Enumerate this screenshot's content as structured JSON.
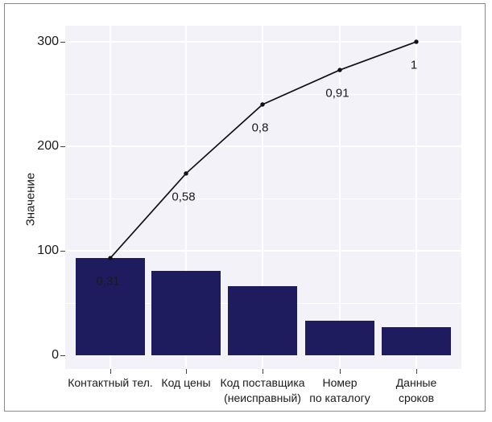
{
  "figure": {
    "frame_border_color": "#8a8a8a",
    "background": "#ffffff"
  },
  "chart_data": {
    "type": "bar",
    "subtype": "pareto",
    "title": "",
    "xlabel": "",
    "ylabel": "Значение",
    "ylim": [
      0,
      300
    ],
    "yticks": [
      0,
      100,
      200,
      300
    ],
    "grid": {
      "horizontal_values": [
        50,
        100,
        150,
        200,
        250,
        300
      ],
      "major_values": [
        100,
        200,
        300
      ],
      "vertical": "at category centers",
      "color": "#ffffff",
      "visible": true
    },
    "legend": "none",
    "categories": [
      "Контактный тел.",
      "Код цены",
      "Код поставщика (неисправный)",
      "Номер по каталогу",
      "Данные сроков"
    ],
    "category_label_lines": [
      [
        "Контактный тел."
      ],
      [
        "Код цены"
      ],
      [
        "Код поставщика",
        "(неисправный)"
      ],
      [
        "Номер",
        "по каталогу"
      ],
      [
        "Данные",
        "сроков"
      ]
    ],
    "series": [
      {
        "name": "bar-values",
        "values": [
          93,
          81,
          66,
          33,
          27
        ]
      },
      {
        "name": "cumulative-line",
        "values": [
          93,
          174,
          240,
          273,
          300
        ]
      }
    ],
    "cumulative_fractions": [
      0.31,
      0.58,
      0.8,
      0.91,
      1.0
    ],
    "point_labels": [
      "0,31",
      "0,58",
      "0,8",
      "0,91",
      "1"
    ],
    "colors": {
      "bar_fill": "#1e1b5e",
      "panel_background": "#f3f2f8",
      "gridline": "#ffffff",
      "line": "#111111",
      "point": "#111111",
      "text": "#1a1a1a",
      "tick": "#444444"
    }
  }
}
